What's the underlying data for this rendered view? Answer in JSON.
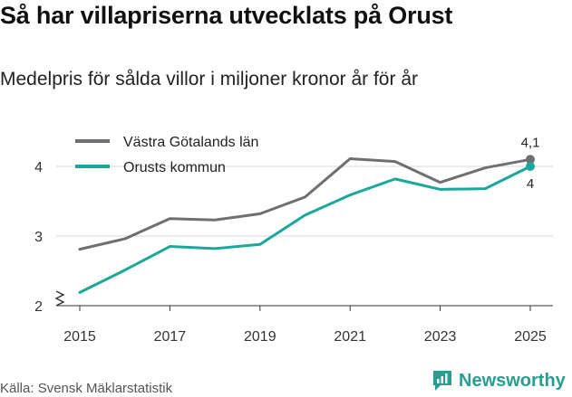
{
  "header": {
    "title": "Så har villapriserna utvecklats på Orust",
    "subtitle": "Medelpris för sålda villor i miljoner kronor år för år"
  },
  "footer": {
    "source": "Källa: Svensk Mäklarstatistik",
    "brand": "Newsworthy"
  },
  "chart_data": {
    "type": "line",
    "title": "Så har villapriserna utvecklats på Orust",
    "subtitle": "Medelpris för sålda villor i miljoner kronor år för år",
    "xlabel": "",
    "ylabel": "",
    "x": [
      2015,
      2016,
      2017,
      2018,
      2019,
      2020,
      2021,
      2022,
      2023,
      2024,
      2025
    ],
    "xticks": [
      2015,
      2017,
      2019,
      2021,
      2023,
      2025
    ],
    "yticks": [
      2,
      3,
      4
    ],
    "ylim": [
      1.85,
      4.4
    ],
    "xlim": [
      2014.6,
      2025.25
    ],
    "grid": true,
    "axis_break": true,
    "legend_position": "top-left",
    "series": [
      {
        "name": "Västra Götalands län",
        "color": "#6f6e72",
        "values": [
          2.81,
          2.96,
          3.25,
          3.23,
          3.32,
          3.56,
          4.11,
          4.07,
          3.77,
          3.98,
          4.1
        ],
        "end_label": "4,1"
      },
      {
        "name": "Orusts kommun",
        "color": "#1aa89a",
        "values": [
          2.19,
          2.51,
          2.85,
          2.82,
          2.88,
          3.3,
          3.59,
          3.82,
          3.67,
          3.68,
          4.0
        ],
        "end_label": "4"
      }
    ]
  }
}
